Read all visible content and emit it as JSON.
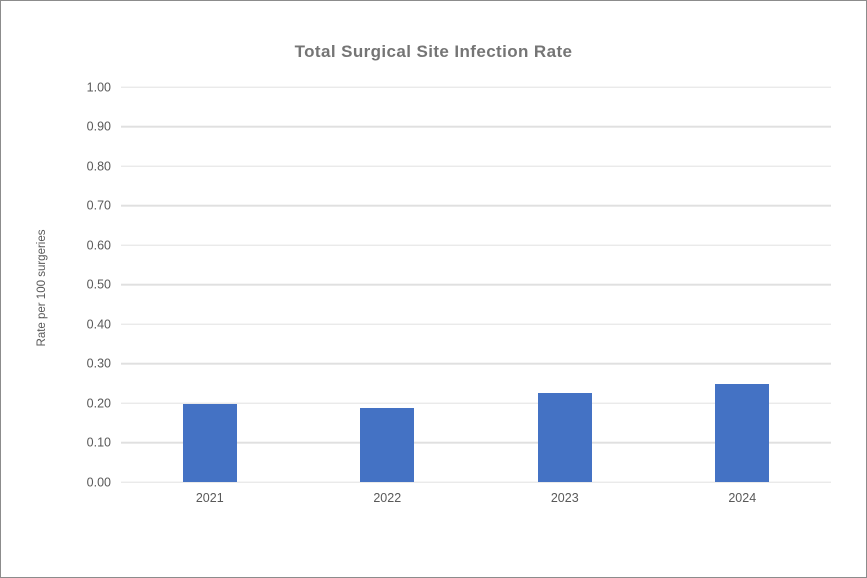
{
  "chart_data": {
    "type": "bar",
    "title": "Total Surgical Site Infection Rate",
    "categories": [
      "2021",
      "2022",
      "2023",
      "2024"
    ],
    "values": [
      0.197,
      0.187,
      0.226,
      0.249
    ],
    "xlabel": "",
    "ylabel": "Rate per 100 surgeries",
    "ylim": [
      0.0,
      1.0
    ],
    "ytick_step": 0.1,
    "ytick_decimals": 2,
    "grid": "horizontal",
    "legend_position": "none",
    "bar_color": "#4472C4"
  },
  "colors": {
    "bar": "#4472C4",
    "gridline": "#E0E0E0",
    "tick_text": "#595959",
    "title_text": "#757575",
    "canvas_border": "#8C8C8C",
    "background": "#FFFFFF"
  }
}
